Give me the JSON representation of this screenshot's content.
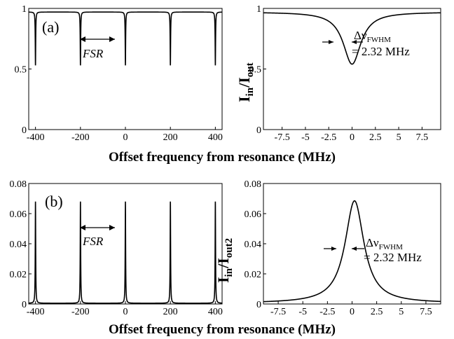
{
  "chart_data": [
    {
      "id": "a_left",
      "type": "line",
      "panel_label": "(a)",
      "annotation": "FSR",
      "x_ticks": [
        "-400",
        "-200",
        "0",
        "200",
        "400"
      ],
      "y_ticks": [
        "0",
        "0.5",
        "1"
      ],
      "xlim": [
        -430,
        430
      ],
      "ylim": [
        0,
        1
      ],
      "series": [
        {
          "shape": "comb-dips",
          "baseline": 0.97,
          "dip_min": 0.53,
          "fwhm": 2.32,
          "centers": [
            -400,
            -200,
            0,
            200,
            400
          ]
        }
      ]
    },
    {
      "id": "a_right",
      "type": "line",
      "x_ticks": [
        "-7.5",
        "-5",
        "-2.5",
        "0",
        "2.5",
        "5",
        "7.5"
      ],
      "y_ticks": [
        "0",
        "0.5",
        "1"
      ],
      "xlim": [
        -9.5,
        9.5
      ],
      "ylim": [
        0,
        1
      ],
      "ylabel": "Iin/Iout",
      "ylabel_main": "I",
      "ylabel_sub1": "in",
      "ylabel_mid": "/I",
      "ylabel_sub2": "out",
      "annotation_line1_symbol": "Δν",
      "annotation_line1_sub": "FWHM",
      "annotation_line2": "= 2.32 MHz",
      "series": [
        {
          "shape": "lorentzian-dip",
          "baseline": 0.97,
          "min": 0.54,
          "center": 0,
          "fwhm": 2.32
        }
      ]
    },
    {
      "id": "b_left",
      "type": "line",
      "panel_label": "(b)",
      "annotation": "FSR",
      "x_ticks": [
        "-400",
        "-200",
        "0",
        "200",
        "400"
      ],
      "y_ticks": [
        "0",
        "0.02",
        "0.04",
        "0.06",
        "0.08"
      ],
      "xlim": [
        -430,
        430
      ],
      "ylim": [
        0,
        0.08
      ],
      "series": [
        {
          "shape": "comb-peaks",
          "baseline": 0.0005,
          "fwhm": 2.32,
          "centers": [
            -400,
            -200,
            0,
            200,
            400
          ],
          "peaks": [
            0.068,
            0.068,
            0.068,
            0.068,
            0.068
          ]
        }
      ]
    },
    {
      "id": "b_right",
      "type": "line",
      "x_ticks": [
        "-7.5",
        "-5",
        "-2.5",
        "0",
        "2.5",
        "5",
        "7.5"
      ],
      "y_ticks": [
        "0",
        "0.02",
        "0.04",
        "0.06",
        "0.08"
      ],
      "xlim": [
        -9,
        9
      ],
      "ylim": [
        0,
        0.08
      ],
      "ylabel": "Iin/Iout2",
      "ylabel_main": "I",
      "ylabel_sub1": "in",
      "ylabel_mid": "/I",
      "ylabel_sub2": "out2",
      "annotation_line1_symbol": "Δν",
      "annotation_line1_sub": "FWHM",
      "annotation_line2": "= 2.32 MHz",
      "series": [
        {
          "shape": "lorentzian-peak",
          "baseline": 0.0005,
          "peak": 0.0685,
          "center": 0.25,
          "fwhm": 2.32
        }
      ]
    }
  ],
  "xlabel_top": "Offset frequency from resonance (MHz)",
  "xlabel_bottom": "Offset frequency from resonance (MHz)"
}
